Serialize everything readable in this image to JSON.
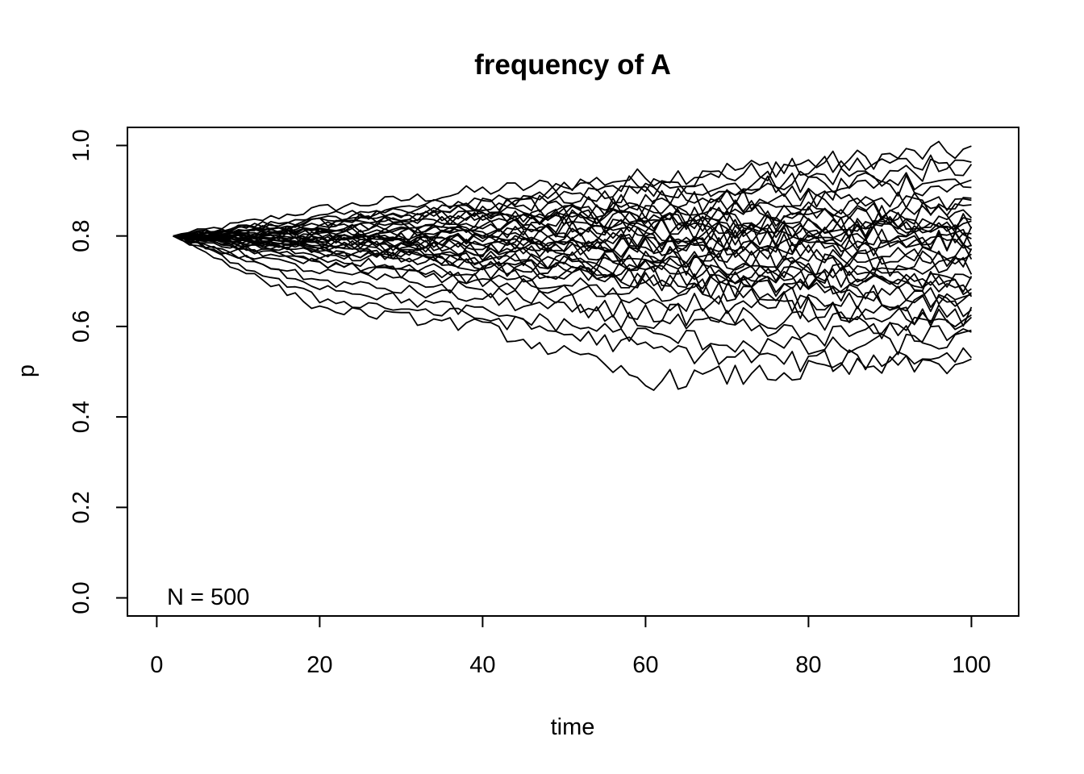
{
  "chart_data": {
    "type": "line",
    "title": "frequency of A",
    "xlabel": "time",
    "ylabel": "p",
    "annotation": "N = 500",
    "xlim": [
      -3.6,
      105.8
    ],
    "ylim": [
      -0.04,
      1.04
    ],
    "xticks": [
      0,
      20,
      40,
      60,
      80,
      100
    ],
    "yticks": [
      0.0,
      0.2,
      0.4,
      0.6,
      0.8,
      1.0
    ],
    "xtick_labels": [
      "0",
      "20",
      "40",
      "60",
      "80",
      "100"
    ],
    "ytick_labels": [
      "0.0",
      "0.2",
      "0.4",
      "0.6",
      "0.8",
      "1.0"
    ],
    "line_color": "#000000",
    "grid": false,
    "series_endpoints": {
      "x": [
        2,
        20,
        40,
        60,
        80,
        100
      ],
      "series": [
        {
          "values": [
            0.8,
            0.86,
            0.9,
            0.93,
            0.96,
            0.99
          ]
        },
        {
          "values": [
            0.8,
            0.84,
            0.88,
            0.92,
            0.95,
            0.97
          ]
        },
        {
          "values": [
            0.8,
            0.83,
            0.87,
            0.9,
            0.93,
            0.95
          ]
        },
        {
          "values": [
            0.8,
            0.82,
            0.86,
            0.9,
            0.92,
            0.93
          ]
        },
        {
          "values": [
            0.8,
            0.84,
            0.86,
            0.88,
            0.9,
            0.92
          ]
        },
        {
          "values": [
            0.8,
            0.81,
            0.84,
            0.86,
            0.87,
            0.86
          ]
        },
        {
          "values": [
            0.8,
            0.82,
            0.85,
            0.84,
            0.85,
            0.85
          ]
        },
        {
          "values": [
            0.8,
            0.81,
            0.82,
            0.83,
            0.84,
            0.84
          ]
        },
        {
          "values": [
            0.8,
            0.79,
            0.82,
            0.84,
            0.83,
            0.83
          ]
        },
        {
          "values": [
            0.8,
            0.8,
            0.81,
            0.82,
            0.82,
            0.82
          ]
        },
        {
          "values": [
            0.8,
            0.81,
            0.8,
            0.8,
            0.81,
            0.81
          ]
        },
        {
          "values": [
            0.8,
            0.78,
            0.79,
            0.81,
            0.8,
            0.8
          ]
        },
        {
          "values": [
            0.8,
            0.8,
            0.78,
            0.79,
            0.79,
            0.79
          ]
        },
        {
          "values": [
            0.8,
            0.79,
            0.8,
            0.78,
            0.78,
            0.78
          ]
        },
        {
          "values": [
            0.8,
            0.78,
            0.78,
            0.77,
            0.77,
            0.76
          ]
        },
        {
          "values": [
            0.8,
            0.79,
            0.77,
            0.76,
            0.75,
            0.74
          ]
        },
        {
          "values": [
            0.8,
            0.77,
            0.76,
            0.75,
            0.74,
            0.73
          ]
        },
        {
          "values": [
            0.8,
            0.78,
            0.75,
            0.74,
            0.72,
            0.71
          ]
        },
        {
          "values": [
            0.8,
            0.76,
            0.74,
            0.72,
            0.71,
            0.7
          ]
        },
        {
          "values": [
            0.8,
            0.77,
            0.73,
            0.71,
            0.7,
            0.68
          ]
        },
        {
          "values": [
            0.8,
            0.75,
            0.72,
            0.7,
            0.68,
            0.67
          ]
        },
        {
          "values": [
            0.8,
            0.74,
            0.7,
            0.68,
            0.66,
            0.65
          ]
        },
        {
          "values": [
            0.8,
            0.74,
            0.7,
            0.66,
            0.64,
            0.62
          ]
        },
        {
          "values": [
            0.8,
            0.72,
            0.68,
            0.63,
            0.61,
            0.6
          ]
        },
        {
          "values": [
            0.8,
            0.7,
            0.66,
            0.61,
            0.58,
            0.59
          ]
        },
        {
          "values": [
            0.8,
            0.69,
            0.63,
            0.58,
            0.55,
            0.57
          ]
        },
        {
          "values": [
            0.8,
            0.66,
            0.62,
            0.55,
            0.52,
            0.54
          ]
        },
        {
          "values": [
            0.8,
            0.64,
            0.6,
            0.48,
            0.5,
            0.52
          ]
        },
        {
          "values": [
            0.8,
            0.82,
            0.84,
            0.87,
            0.89,
            0.88
          ]
        },
        {
          "values": [
            0.8,
            0.81,
            0.83,
            0.85,
            0.86,
            0.84
          ]
        },
        {
          "values": [
            0.8,
            0.79,
            0.81,
            0.82,
            0.8,
            0.79
          ]
        },
        {
          "values": [
            0.8,
            0.78,
            0.77,
            0.78,
            0.76,
            0.75
          ]
        },
        {
          "values": [
            0.8,
            0.8,
            0.79,
            0.75,
            0.72,
            0.69
          ]
        },
        {
          "values": [
            0.8,
            0.76,
            0.75,
            0.73,
            0.69,
            0.64
          ]
        },
        {
          "values": [
            0.8,
            0.83,
            0.85,
            0.83,
            0.82,
            0.8
          ]
        },
        {
          "values": [
            0.8,
            0.77,
            0.74,
            0.7,
            0.65,
            0.61
          ]
        }
      ]
    }
  }
}
